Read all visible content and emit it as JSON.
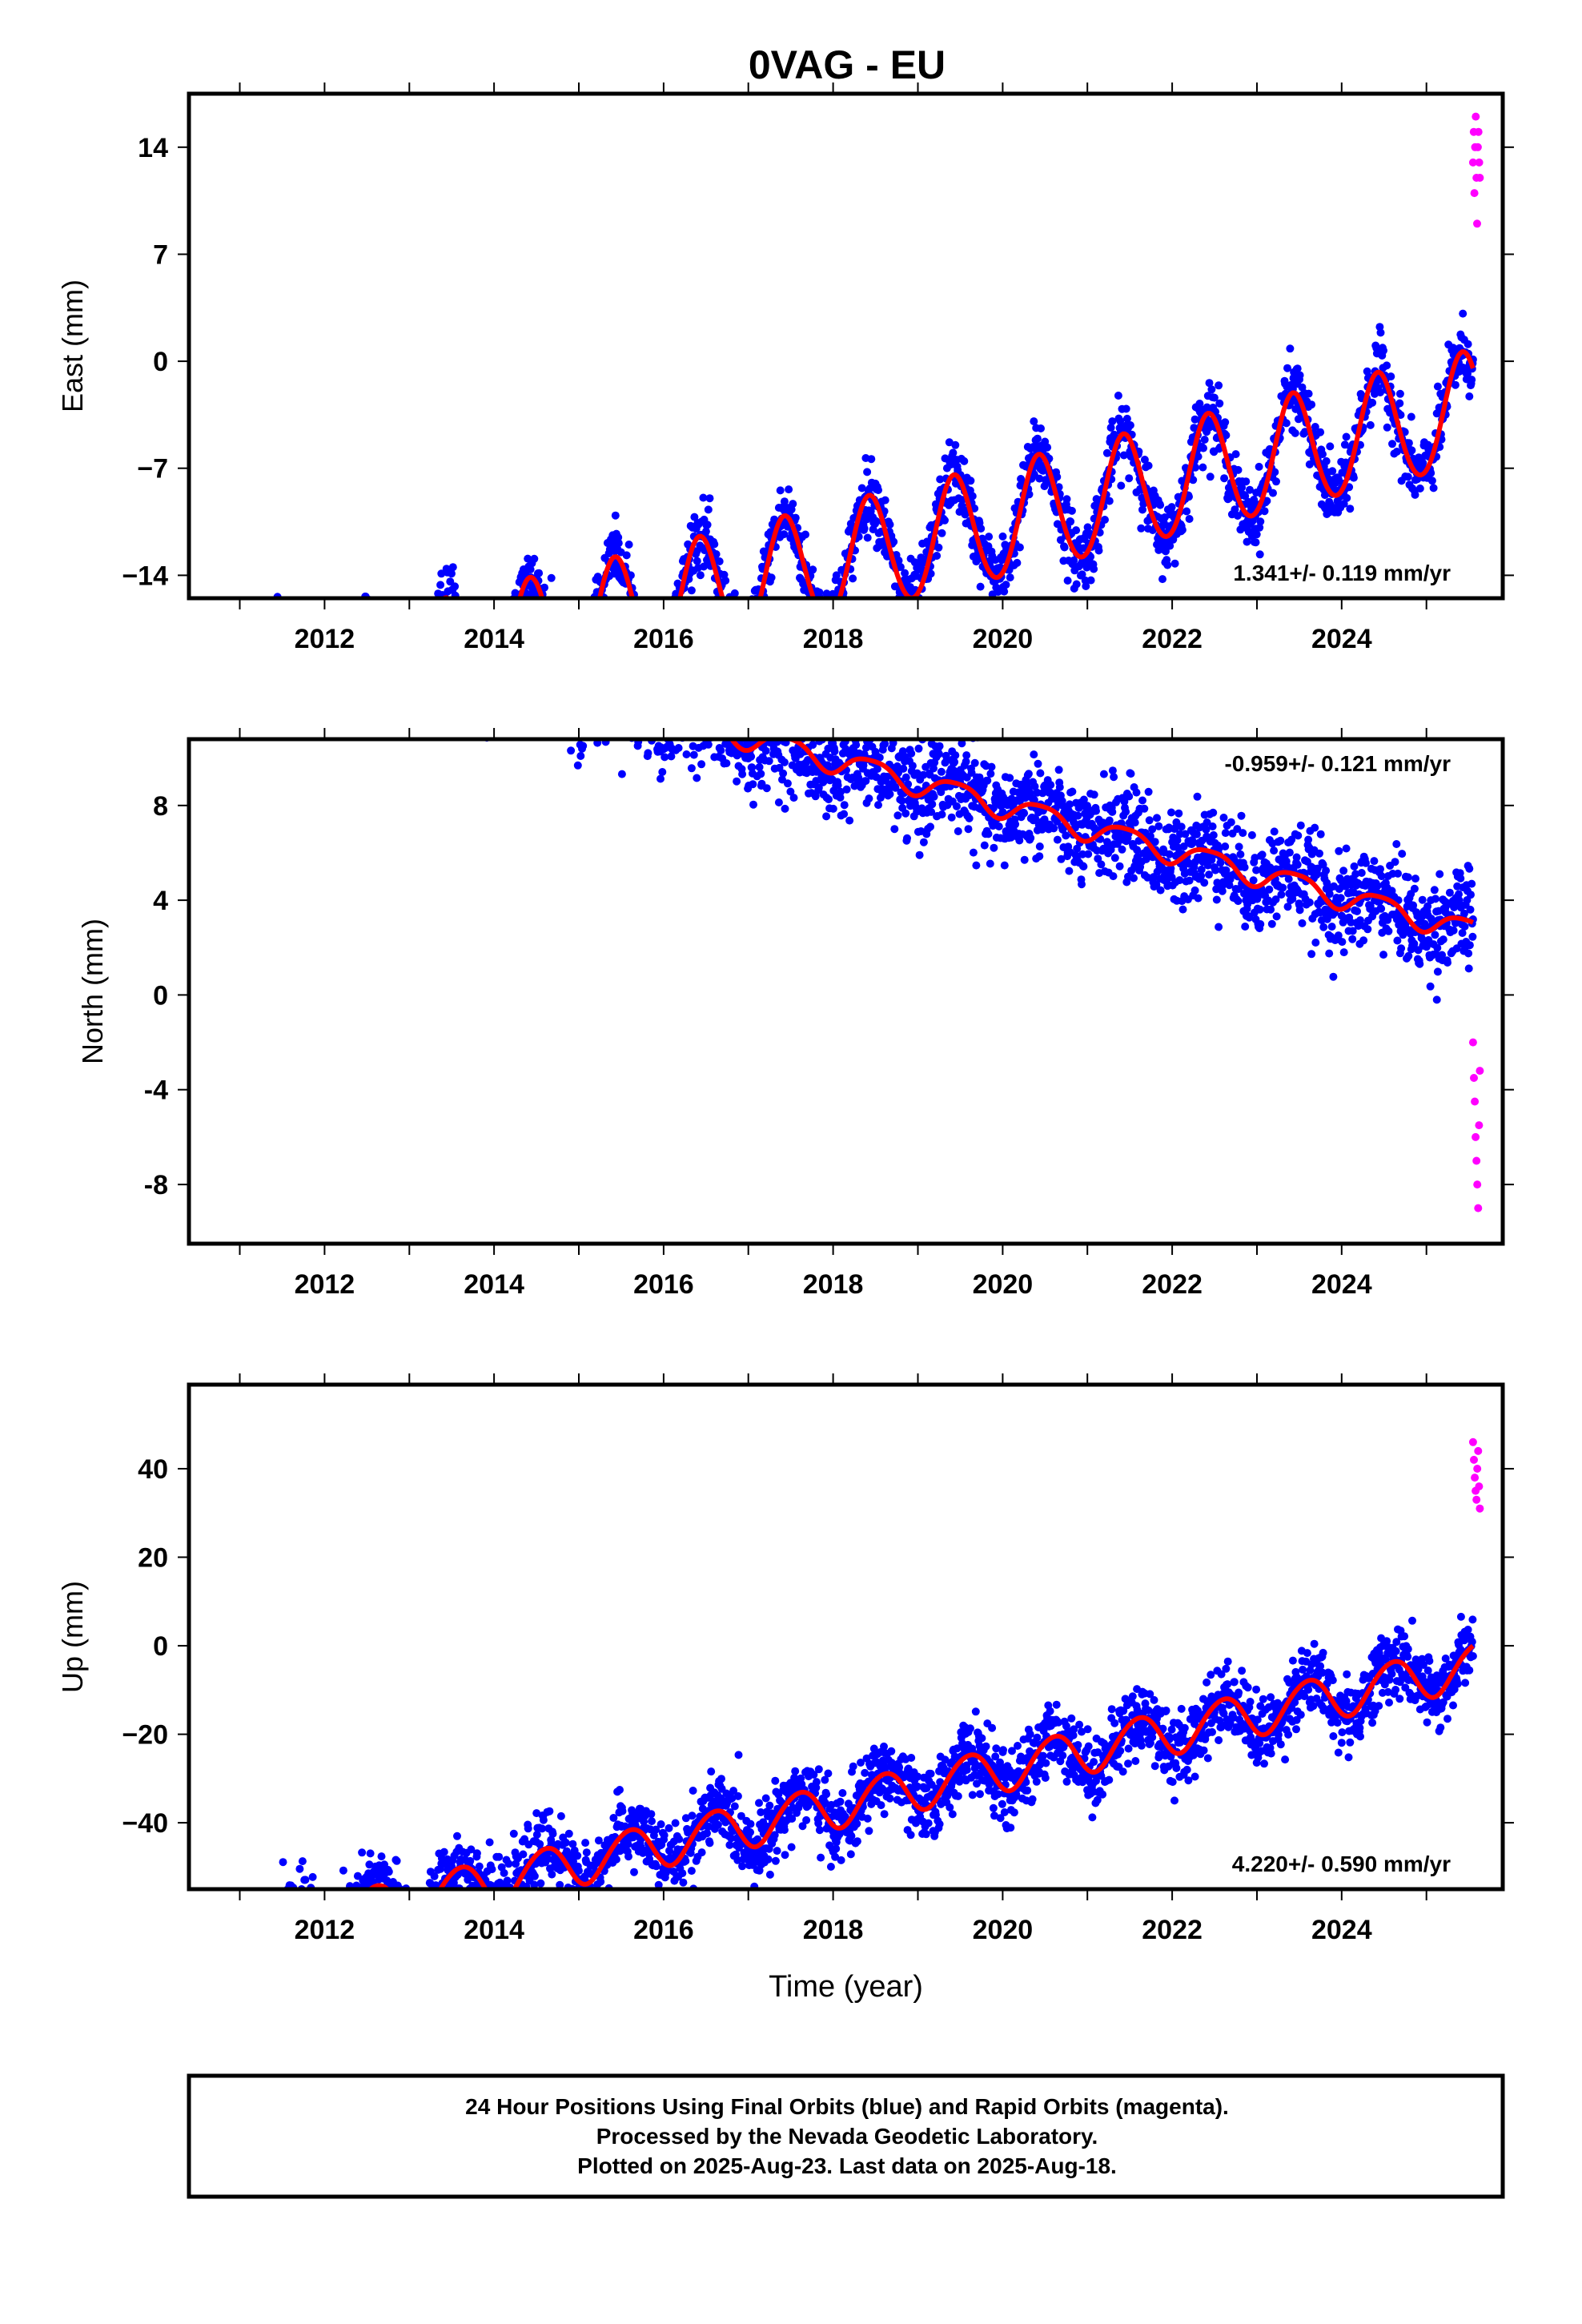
{
  "title": "0VAG - EU",
  "footer": {
    "lines": [
      "24 Hour Positions Using Final Orbits (blue) and Rapid Orbits (magenta).",
      "Processed by the Nevada Geodetic Laboratory.",
      "Plotted on 2025-Aug-23. Last data on 2025-Aug-18."
    ]
  },
  "colors": {
    "final_orbits": "#0000ff",
    "rapid_orbits": "#ff00ff",
    "model_fit": "#ff0000",
    "frame": "#000000"
  },
  "chart_data": [
    {
      "type": "scatter",
      "component": "east",
      "title": "0VAG - EU",
      "xlabel": "",
      "ylabel": "East (mm)",
      "xlim": [
        2010.4,
        2025.9
      ],
      "ylim": [
        -15.5,
        17.5
      ],
      "x_ticks": [
        2012,
        2014,
        2016,
        2018,
        2020,
        2022,
        2024
      ],
      "x_tick_labels": [
        "2012",
        "2014",
        "2016",
        "2018",
        "2020",
        "2022",
        "2024"
      ],
      "y_ticks": [
        -14,
        -7,
        0,
        7,
        14
      ],
      "y_tick_labels": [
        "−14",
        "−7",
        "0",
        "7",
        "14"
      ],
      "rate_label": "1.341+/- 0.119 mm/yr",
      "rate_label_position": "bottom-right",
      "model": {
        "start_year": 2010.65,
        "end_year": 2025.55,
        "offset": -23.95,
        "rate": 1.341,
        "annual_amp": 3.7,
        "annual_peak": 0.43,
        "semiannual_amp": 0.2,
        "semiannual_peak": 0.4
      },
      "final_orbits": {
        "start_year": 2010.65,
        "end_year": 2025.55,
        "scatter_sd": 1.1
      },
      "rapid_orbits": {
        "start_year": 2025.55,
        "end_year": 2025.63,
        "values": [
          13,
          15,
          11,
          14,
          16,
          12,
          9,
          14,
          15,
          13,
          12
        ]
      }
    },
    {
      "type": "scatter",
      "component": "north",
      "xlabel": "",
      "ylabel": "North (mm)",
      "xlim": [
        2010.4,
        2025.9
      ],
      "ylim": [
        -10.5,
        10.8
      ],
      "x_ticks": [
        2012,
        2014,
        2016,
        2018,
        2020,
        2022,
        2024
      ],
      "x_tick_labels": [
        "2012",
        "2014",
        "2016",
        "2018",
        "2020",
        "2022",
        "2024"
      ],
      "y_ticks": [
        -8,
        -4,
        0,
        4,
        8
      ],
      "y_tick_labels": [
        "-8",
        "-4",
        "0",
        "4",
        "8"
      ],
      "rate_label": "-0.959+/- 0.121 mm/yr",
      "rate_label_position": "top-right",
      "model": {
        "start_year": 2010.65,
        "end_year": 2025.55,
        "offset": 17.6,
        "rate": -0.959,
        "annual_amp": 0.5,
        "annual_peak": 0.45,
        "semiannual_amp": 0.1,
        "semiannual_peak": 0.2
      },
      "final_orbits": {
        "start_year": 2010.65,
        "end_year": 2025.55,
        "scatter_sd": 1.0
      },
      "rapid_orbits": {
        "start_year": 2025.55,
        "end_year": 2025.63,
        "values": [
          -2,
          -3.5,
          -4.5,
          -6,
          -7,
          -8,
          -9,
          -5.5,
          -3.2
        ]
      }
    },
    {
      "type": "scatter",
      "component": "up",
      "xlabel": "Time (year)",
      "ylabel": "Up (mm)",
      "xlim": [
        2010.4,
        2025.9
      ],
      "ylim": [
        -55,
        59
      ],
      "x_ticks": [
        2012,
        2014,
        2016,
        2018,
        2020,
        2022,
        2024
      ],
      "x_tick_labels": [
        "2012",
        "2014",
        "2016",
        "2018",
        "2020",
        "2022",
        "2024"
      ],
      "y_ticks": [
        -40,
        -20,
        0,
        20,
        40
      ],
      "y_tick_labels": [
        "−40",
        "−20",
        "0",
        "20",
        "40"
      ],
      "rate_label": "4.220+/- 0.590 mm/yr",
      "rate_label_position": "bottom-right",
      "model": {
        "start_year": 2010.65,
        "end_year": 2025.55,
        "offset": -70.0,
        "rate": 4.22,
        "annual_amp": 5.0,
        "annual_peak": 0.6,
        "semiannual_amp": 0.4,
        "semiannual_peak": 0.3
      },
      "final_orbits": {
        "start_year": 2010.65,
        "end_year": 2025.55,
        "scatter_sd": 4.0
      },
      "rapid_orbits": {
        "start_year": 2025.55,
        "end_year": 2025.63,
        "values": [
          46,
          42,
          38,
          35,
          33,
          40,
          44,
          36,
          31
        ]
      }
    }
  ]
}
